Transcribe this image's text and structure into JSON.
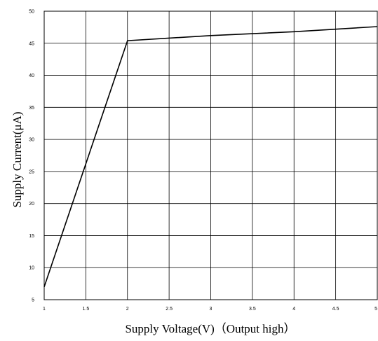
{
  "chart_data": {
    "type": "line",
    "title": "",
    "xlabel": "Supply Voltage(V)（Output high）",
    "ylabel": "Supply Current(μA)",
    "xlim": [
      1,
      5
    ],
    "ylim": [
      5,
      50
    ],
    "xticks": [
      "1",
      "1.5",
      "2",
      "2.5",
      "3",
      "3.5",
      "4",
      "4.5",
      "5"
    ],
    "yticks": [
      "5",
      "10",
      "15",
      "20",
      "25",
      "30",
      "35",
      "40",
      "45",
      "50"
    ],
    "grid": true,
    "legend": "none",
    "series": [
      {
        "x": [
          1.0,
          2.0,
          3.0,
          4.0,
          5.0
        ],
        "y": [
          7.0,
          45.4,
          46.2,
          46.8,
          47.6
        ]
      }
    ],
    "colors": {
      "line": "#000000",
      "grid": "#000000",
      "background": "#ffffff"
    }
  }
}
